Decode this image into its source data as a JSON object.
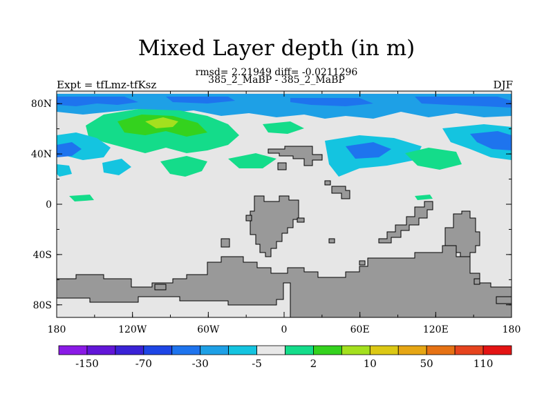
{
  "title": "Mixed Layer depth (in m)",
  "stats_line": "rmsd= 2.21949 diff= -0.0211296",
  "comparison": "385_2_MaBP - 385_2_MaBP",
  "left_label": "Expt = tfLmz-tfKsz",
  "right_label": "DJF",
  "chart_data": {
    "type": "heatmap",
    "x_ticks": [
      "180",
      "120W",
      "60W",
      "0",
      "60E",
      "120E",
      "180"
    ],
    "y_ticks": [
      "80N",
      "40N",
      "0",
      "40S",
      "80S"
    ],
    "xlim": [
      -180,
      180
    ],
    "ylim": [
      -90,
      90
    ],
    "colorbar": {
      "colors": [
        "#8a1ae6",
        "#6216d8",
        "#3a22d6",
        "#1e46e6",
        "#1e74ee",
        "#1ea0e6",
        "#14c4e0",
        "#e8e8e8",
        "#14dc8a",
        "#34d21e",
        "#a4e01e",
        "#dcc814",
        "#e6a614",
        "#e67214",
        "#e6441e",
        "#e41414"
      ],
      "labels": [
        "-150",
        "-70",
        "-30",
        "-5",
        "2",
        "10",
        "50",
        "110"
      ]
    },
    "land_color": "#999999",
    "ocean_color": "#e6e6e6"
  }
}
